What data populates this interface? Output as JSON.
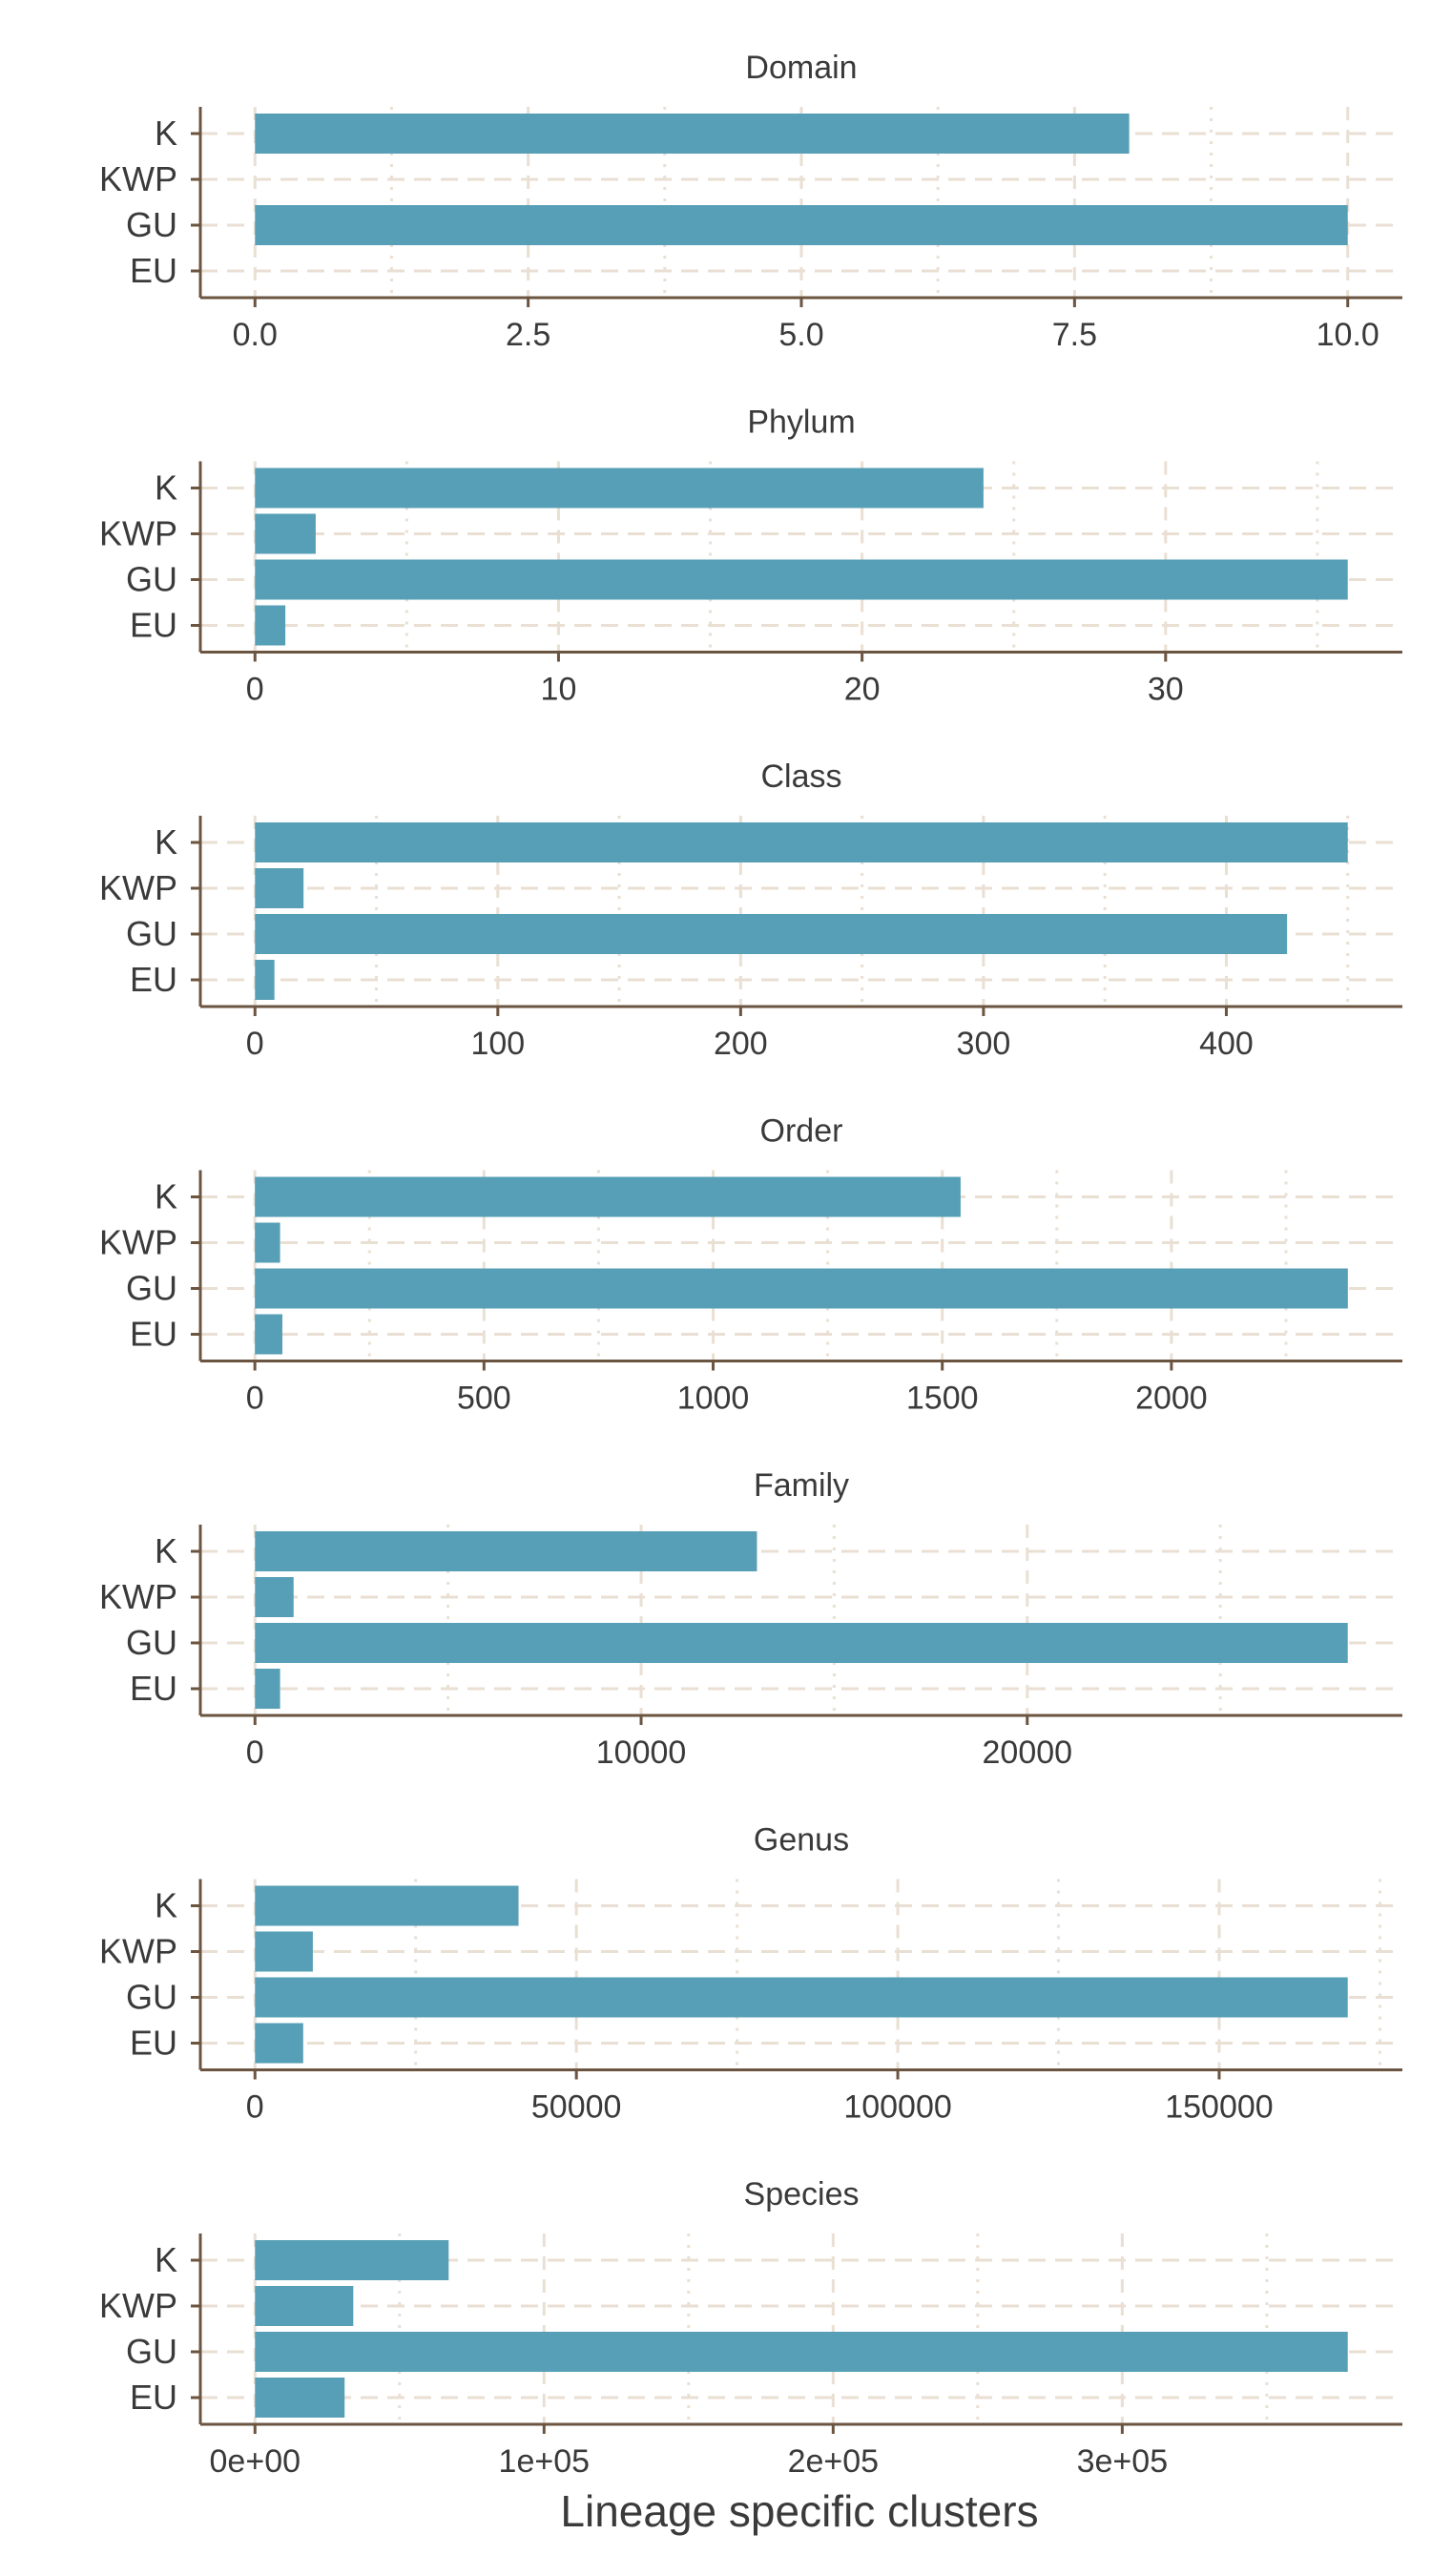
{
  "style": {
    "bar_color": "#569fb6",
    "axis_color": "#6b5440",
    "grid_color": "#eadfd3",
    "text_color": "#3a3a3a"
  },
  "chart_data": {
    "type": "bar",
    "orientation": "horizontal",
    "facet_layout": "vertical-stack",
    "xlabel": "Lineage specific clusters",
    "categories": [
      "K",
      "KWP",
      "GU",
      "EU"
    ],
    "panels": [
      {
        "title": "Domain",
        "values": [
          8,
          0,
          10,
          0
        ],
        "xlim": [
          -0.5,
          10.5
        ],
        "ticks": [
          0,
          2.5,
          5,
          7.5,
          10
        ],
        "tick_labels": [
          "0.0",
          "2.5",
          "5.0",
          "7.5",
          "10.0"
        ],
        "minor_ticks": [
          1.25,
          3.75,
          6.25,
          8.75
        ]
      },
      {
        "title": "Phylum",
        "values": [
          24,
          2,
          36,
          1
        ],
        "xlim": [
          -1.8,
          37.8
        ],
        "ticks": [
          0,
          10,
          20,
          30
        ],
        "tick_labels": [
          "0",
          "10",
          "20",
          "30"
        ],
        "minor_ticks": [
          5,
          15,
          25,
          35
        ]
      },
      {
        "title": "Class",
        "values": [
          450,
          20,
          425,
          8
        ],
        "xlim": [
          -22.5,
          472.5
        ],
        "ticks": [
          0,
          100,
          200,
          300,
          400
        ],
        "tick_labels": [
          "0",
          "100",
          "200",
          "300",
          "400"
        ],
        "minor_ticks": [
          50,
          150,
          250,
          350,
          450
        ]
      },
      {
        "title": "Order",
        "values": [
          1540,
          55,
          2385,
          60
        ],
        "xlim": [
          -119,
          2504
        ],
        "ticks": [
          0,
          500,
          1000,
          1500,
          2000
        ],
        "tick_labels": [
          "0",
          "500",
          "1000",
          "1500",
          "2000"
        ],
        "minor_ticks": [
          250,
          750,
          1250,
          1750,
          2250
        ]
      },
      {
        "title": "Family",
        "values": [
          13000,
          1000,
          28300,
          650
        ],
        "xlim": [
          -1415,
          29715
        ],
        "ticks": [
          0,
          10000,
          20000
        ],
        "tick_labels": [
          "0",
          "10000",
          "20000"
        ],
        "minor_ticks": [
          5000,
          15000,
          25000
        ]
      },
      {
        "title": "Genus",
        "values": [
          41000,
          9000,
          170000,
          7500
        ],
        "xlim": [
          -8500,
          178500
        ],
        "ticks": [
          0,
          50000,
          100000,
          150000
        ],
        "tick_labels": [
          "0",
          "50000",
          "100000",
          "150000"
        ],
        "minor_ticks": [
          25000,
          75000,
          125000,
          175000
        ]
      },
      {
        "title": "Species",
        "values": [
          67000,
          34000,
          378000,
          31000
        ],
        "xlim": [
          -18900,
          396900
        ],
        "ticks": [
          0,
          100000,
          200000,
          300000
        ],
        "tick_labels": [
          "0e+00",
          "1e+05",
          "2e+05",
          "3e+05"
        ],
        "minor_ticks": [
          50000,
          150000,
          250000,
          350000
        ]
      }
    ]
  }
}
